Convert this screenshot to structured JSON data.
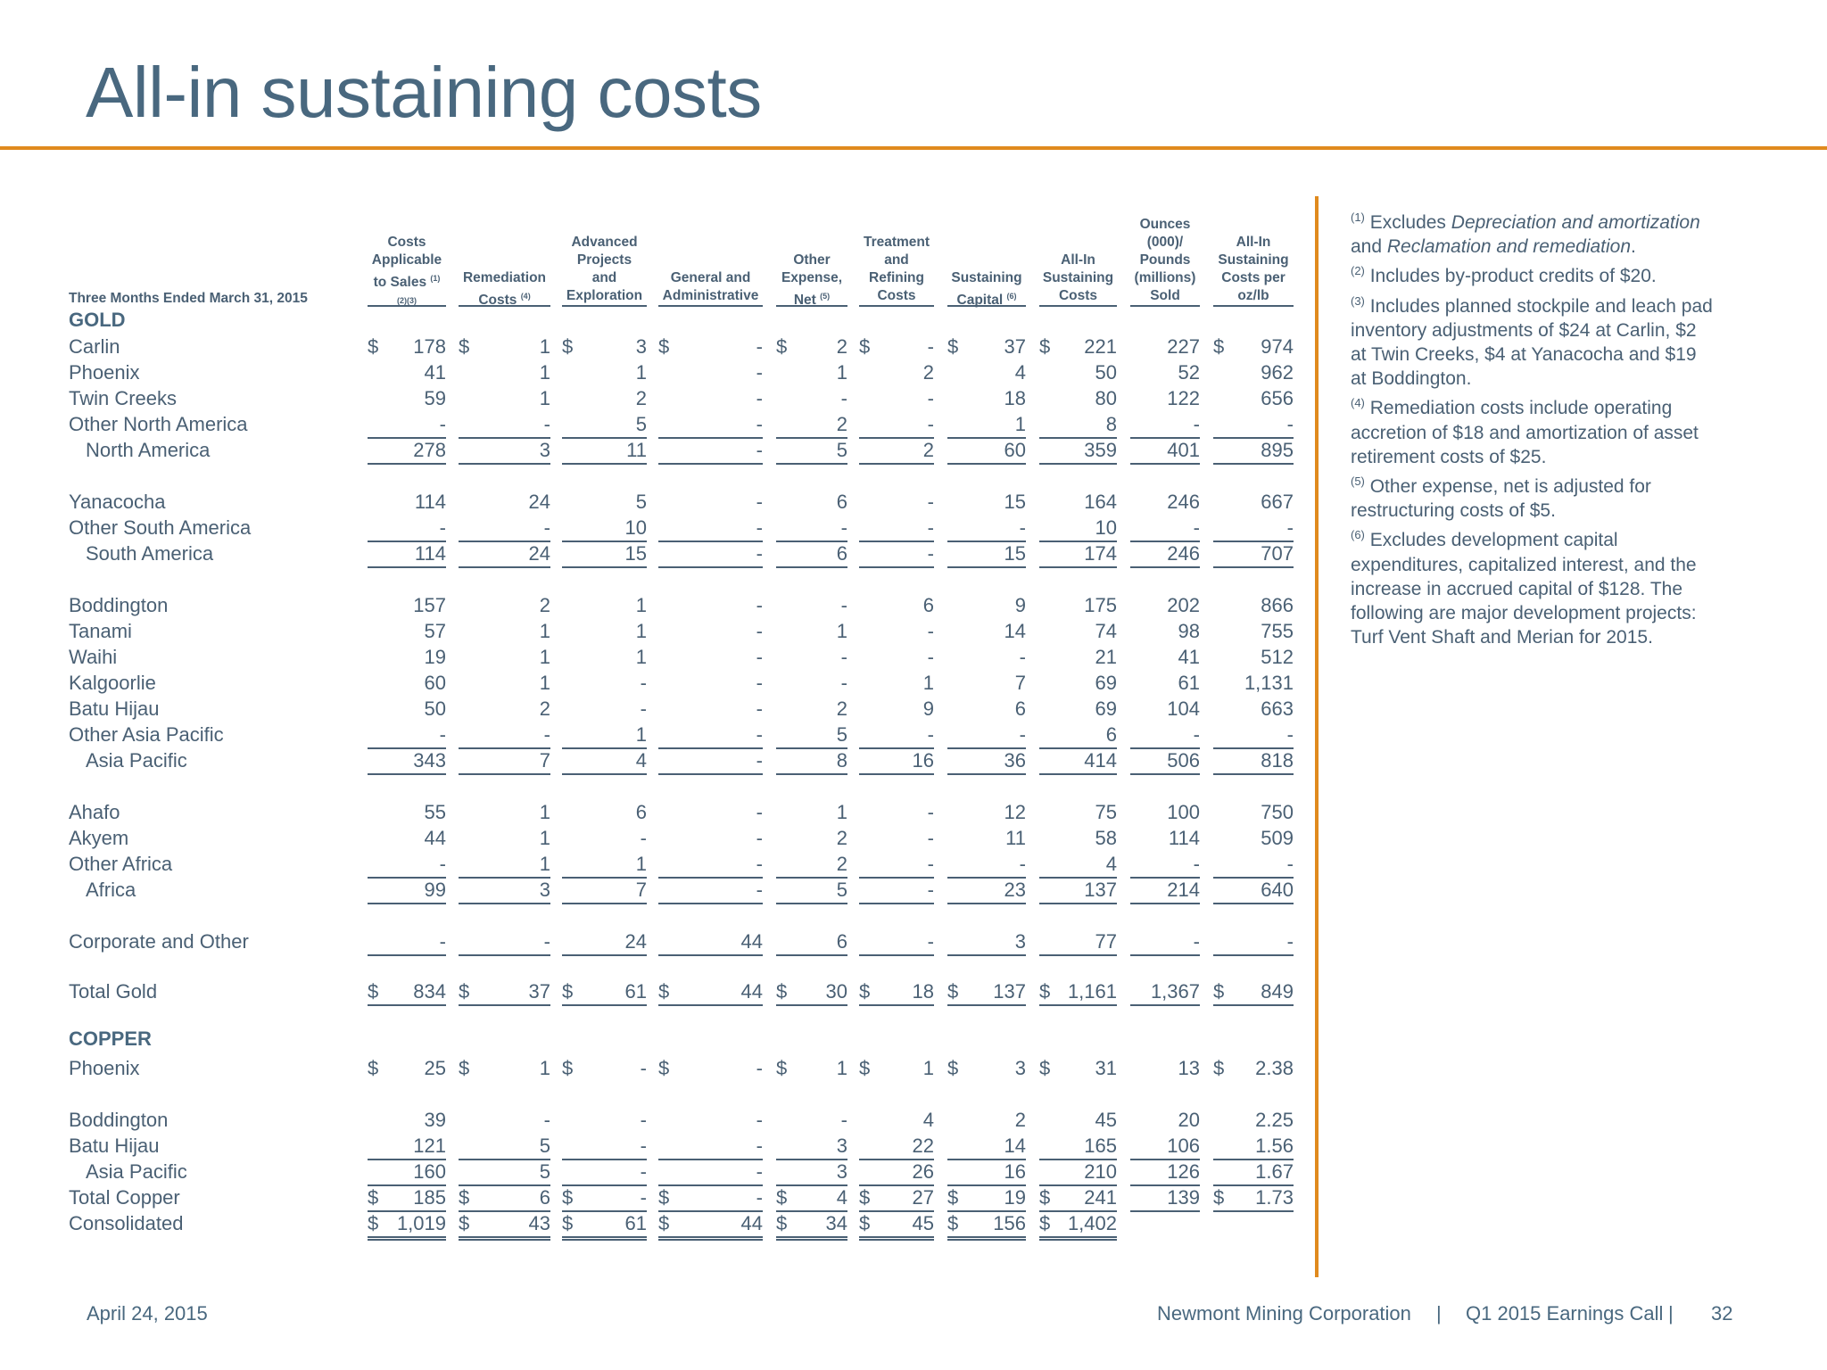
{
  "title": "All-in sustaining costs",
  "period": "Three Months Ended March 31, 2015",
  "columns": [
    {
      "html": "Costs<br>Applicable<br>to Sales <sup>(1)</sup><br><sup>(2)(3)</sup>"
    },
    {
      "html": "Remediation<br>Costs <sup>(4)</sup>"
    },
    {
      "html": "Advanced<br>Projects<br>and<br>Exploration"
    },
    {
      "html": "General and<br>Administrative"
    },
    {
      "html": "Other<br>Expense,<br>Net <sup>(5)</sup>"
    },
    {
      "html": "Treatment<br>and<br>Refining<br>Costs"
    },
    {
      "html": "Sustaining<br>Capital <sup>(6)</sup>"
    },
    {
      "html": "All-In<br>Sustaining<br>Costs"
    },
    {
      "html": "Ounces<br>(000)/<br>Pounds<br>(millions)<br>Sold"
    },
    {
      "html": "All-In<br>Sustaining<br>Costs per<br>oz/lb"
    }
  ],
  "sections": {
    "gold": "GOLD",
    "copper": "COPPER"
  },
  "rows": [
    {
      "label": "Carlin",
      "values": [
        "178",
        "1",
        "3",
        "-",
        "2",
        "-",
        "37",
        "221",
        "227",
        "974"
      ],
      "dollar": true
    },
    {
      "label": "Phoenix",
      "values": [
        "41",
        "1",
        "1",
        "-",
        "1",
        "2",
        "4",
        "50",
        "52",
        "962"
      ]
    },
    {
      "label": "Twin Creeks",
      "values": [
        "59",
        "1",
        "2",
        "-",
        "-",
        "-",
        "18",
        "80",
        "122",
        "656"
      ]
    },
    {
      "label": "Other North America",
      "values": [
        "-",
        "-",
        "5",
        "-",
        "2",
        "-",
        "1",
        "8",
        "-",
        "-"
      ],
      "underline": "single"
    },
    {
      "label": "North America",
      "values": [
        "278",
        "3",
        "11",
        "-",
        "5",
        "2",
        "60",
        "359",
        "401",
        "895"
      ],
      "indent": true,
      "underline": "single"
    },
    {
      "label": "Yanacocha",
      "values": [
        "114",
        "24",
        "5",
        "-",
        "6",
        "-",
        "15",
        "164",
        "246",
        "667"
      ]
    },
    {
      "label": "Other South America",
      "values": [
        "-",
        "-",
        "10",
        "-",
        "-",
        "-",
        "-",
        "10",
        "-",
        "-"
      ],
      "underline": "single"
    },
    {
      "label": "South America",
      "values": [
        "114",
        "24",
        "15",
        "-",
        "6",
        "-",
        "15",
        "174",
        "246",
        "707"
      ],
      "indent": true,
      "underline": "single"
    },
    {
      "label": "Boddington",
      "values": [
        "157",
        "2",
        "1",
        "-",
        "-",
        "6",
        "9",
        "175",
        "202",
        "866"
      ]
    },
    {
      "label": "Tanami",
      "values": [
        "57",
        "1",
        "1",
        "-",
        "1",
        "-",
        "14",
        "74",
        "98",
        "755"
      ]
    },
    {
      "label": "Waihi",
      "values": [
        "19",
        "1",
        "1",
        "-",
        "-",
        "-",
        "-",
        "21",
        "41",
        "512"
      ]
    },
    {
      "label": "Kalgoorlie",
      "values": [
        "60",
        "1",
        "-",
        "-",
        "-",
        "1",
        "7",
        "69",
        "61",
        "1,131"
      ]
    },
    {
      "label": "Batu Hijau",
      "values": [
        "50",
        "2",
        "-",
        "-",
        "2",
        "9",
        "6",
        "69",
        "104",
        "663"
      ]
    },
    {
      "label": "Other Asia Pacific",
      "values": [
        "-",
        "-",
        "1",
        "-",
        "5",
        "-",
        "-",
        "6",
        "-",
        "-"
      ],
      "underline": "single"
    },
    {
      "label": "Asia Pacific",
      "values": [
        "343",
        "7",
        "4",
        "-",
        "8",
        "16",
        "36",
        "414",
        "506",
        "818"
      ],
      "indent": true,
      "underline": "single"
    },
    {
      "label": "Ahafo",
      "values": [
        "55",
        "1",
        "6",
        "-",
        "1",
        "-",
        "12",
        "75",
        "100",
        "750"
      ]
    },
    {
      "label": "Akyem",
      "values": [
        "44",
        "1",
        "-",
        "-",
        "2",
        "-",
        "11",
        "58",
        "114",
        "509"
      ]
    },
    {
      "label": "Other Africa",
      "values": [
        "-",
        "1",
        "1",
        "-",
        "2",
        "-",
        "-",
        "4",
        "-",
        "-"
      ],
      "underline": "single"
    },
    {
      "label": "Africa",
      "values": [
        "99",
        "3",
        "7",
        "-",
        "5",
        "-",
        "23",
        "137",
        "214",
        "640"
      ],
      "indent": true,
      "underline": "single"
    },
    {
      "label": "Corporate and Other",
      "values": [
        "-",
        "-",
        "24",
        "44",
        "6",
        "-",
        "3",
        "77",
        "-",
        "-"
      ],
      "underline": "single"
    },
    {
      "label": "Total Gold",
      "values": [
        "834",
        "37",
        "61",
        "44",
        "30",
        "18",
        "137",
        "1,161",
        "1,367",
        "849"
      ],
      "dollar": true,
      "underline": "single"
    },
    {
      "label": "Phoenix",
      "values": [
        "25",
        "1",
        "-",
        "-",
        "1",
        "1",
        "3",
        "31",
        "13",
        "2.38"
      ],
      "dollar": true
    },
    {
      "label": "Boddington",
      "values": [
        "39",
        "-",
        "-",
        "-",
        "-",
        "4",
        "2",
        "45",
        "20",
        "2.25"
      ]
    },
    {
      "label": "Batu Hijau",
      "values": [
        "121",
        "5",
        "-",
        "-",
        "3",
        "22",
        "14",
        "165",
        "106",
        "1.56"
      ],
      "underline": "single"
    },
    {
      "label": "Asia Pacific",
      "values": [
        "160",
        "5",
        "-",
        "-",
        "3",
        "26",
        "16",
        "210",
        "126",
        "1.67"
      ],
      "indent": true,
      "underline": "single"
    },
    {
      "label": "Total Copper",
      "values": [
        "185",
        "6",
        "-",
        "-",
        "4",
        "27",
        "19",
        "241",
        "139",
        "1.73"
      ],
      "dollar": true,
      "underline": "single"
    },
    {
      "label": "Consolidated",
      "values": [
        "1,019",
        "43",
        "61",
        "44",
        "34",
        "45",
        "156",
        "1,402",
        "",
        ""
      ],
      "dollar": true,
      "underline": "double"
    }
  ],
  "notes": [
    "<sup>(1)</sup> Excludes <i>Depreciation and amortization</i> and <i>Reclamation and remediation</i>.",
    "<sup>(2)</sup> Includes by-product credits of $20.",
    "<sup>(3)</sup> Includes planned stockpile and leach pad inventory adjustments of $24 at Carlin, $2 at Twin Creeks, $4 at Yanacocha and $19 at Boddington.",
    "<sup>(4)</sup> Remediation costs include operating accretion of $18 and amortization of asset retirement costs of $25.",
    "<sup>(5)</sup> Other expense, net is adjusted for restructuring costs of $5.",
    "<sup>(6)</sup> Excludes development capital expenditures, capitalized interest, and the increase in accrued capital of $128. The following are major development projects: Turf Vent Shaft and Merian for 2015."
  ],
  "footer": {
    "date": "April 24, 2015",
    "company": "Newmont Mining Corporation",
    "sep1": "|",
    "event": "Q1 2015 Earnings Call",
    "sep2": "|",
    "page": "32"
  }
}
